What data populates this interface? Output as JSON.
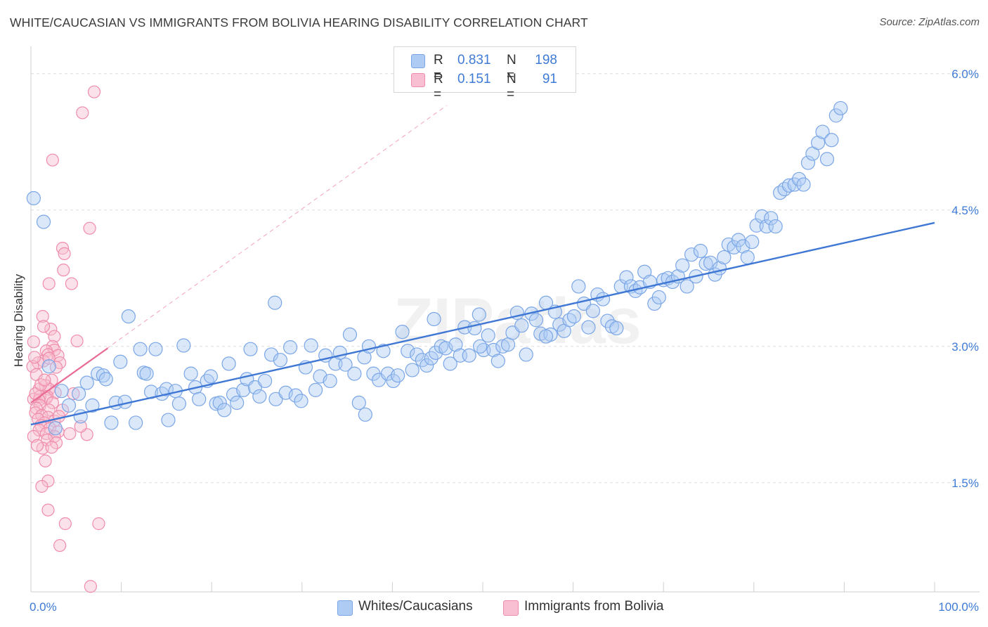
{
  "title": "WHITE/CAUCASIAN VS IMMIGRANTS FROM BOLIVIA HEARING DISABILITY CORRELATION CHART",
  "source": "Source: ZipAtlas.com",
  "watermark": "ZIPatlas",
  "colors": {
    "blue": "#3f77d4",
    "blue_fill": "#aecbf4",
    "blue_stroke": "#7ba6e6",
    "pink": "#e86b96",
    "pink_fill": "#f7bfd1",
    "pink_stroke": "#f08cab",
    "axis_label": "#3e7bd6"
  },
  "legend_top": [
    {
      "r_label": "R =",
      "r_value": "0.831",
      "n_label": "N =",
      "n_value": "198"
    },
    {
      "r_label": "R =",
      "r_value": "0.151",
      "n_label": "N =",
      "n_value": "91"
    }
  ],
  "legend_bottom": [
    "Whites/Caucasians",
    "Immigrants from Bolivia"
  ],
  "chart_data": {
    "type": "scatter",
    "ylabel": "Hearing Disability",
    "xlabel": "",
    "xlim": [
      0,
      100
    ],
    "ylim": [
      0.3,
      6.3
    ],
    "x_tick_labels": [
      "0.0%",
      "100.0%"
    ],
    "y_ticks": [
      1.5,
      3.0,
      4.5,
      6.0
    ],
    "y_tick_labels": [
      "1.5%",
      "3.0%",
      "4.5%",
      "6.0%"
    ],
    "grid": "horizontal dashed",
    "series": [
      {
        "name": "Whites/Caucasians",
        "color": "blue",
        "trend": {
          "x": [
            0,
            100
          ],
          "y": [
            2.14,
            4.36
          ]
        },
        "points": [
          [
            0.3,
            4.63
          ],
          [
            1.4,
            4.37
          ],
          [
            2.0,
            2.78
          ],
          [
            2.7,
            2.1
          ],
          [
            3.4,
            2.51
          ],
          [
            4.2,
            2.35
          ],
          [
            5.3,
            2.48
          ],
          [
            5.5,
            2.23
          ],
          [
            6.2,
            2.6
          ],
          [
            6.8,
            2.35
          ],
          [
            7.4,
            2.7
          ],
          [
            8.0,
            2.68
          ],
          [
            8.3,
            2.64
          ],
          [
            8.9,
            2.16
          ],
          [
            9.4,
            2.38
          ],
          [
            9.9,
            2.83
          ],
          [
            10.4,
            2.39
          ],
          [
            10.8,
            3.33
          ],
          [
            11.6,
            2.16
          ],
          [
            12.1,
            2.97
          ],
          [
            12.5,
            2.71
          ],
          [
            12.8,
            2.7
          ],
          [
            13.3,
            2.5
          ],
          [
            13.8,
            2.97
          ],
          [
            14.5,
            2.48
          ],
          [
            15.0,
            2.53
          ],
          [
            15.2,
            2.19
          ],
          [
            16.0,
            2.51
          ],
          [
            16.4,
            2.37
          ],
          [
            16.9,
            3.01
          ],
          [
            17.7,
            2.7
          ],
          [
            18.2,
            2.55
          ],
          [
            18.6,
            2.42
          ],
          [
            19.5,
            2.62
          ],
          [
            19.9,
            2.67
          ],
          [
            20.5,
            2.37
          ],
          [
            20.9,
            2.38
          ],
          [
            21.4,
            2.3
          ],
          [
            21.9,
            2.81
          ],
          [
            22.4,
            2.47
          ],
          [
            22.8,
            2.38
          ],
          [
            23.5,
            2.52
          ],
          [
            23.9,
            2.64
          ],
          [
            24.3,
            2.97
          ],
          [
            24.8,
            2.55
          ],
          [
            25.3,
            2.45
          ],
          [
            25.9,
            2.62
          ],
          [
            26.6,
            2.91
          ],
          [
            27.1,
            2.42
          ],
          [
            27.6,
            2.85
          ],
          [
            28.2,
            2.49
          ],
          [
            28.7,
            2.99
          ],
          [
            29.3,
            2.46
          ],
          [
            29.9,
            2.4
          ],
          [
            30.4,
            2.77
          ],
          [
            31.0,
            3.01
          ],
          [
            31.5,
            2.52
          ],
          [
            32.0,
            2.67
          ],
          [
            32.6,
            2.9
          ],
          [
            33.1,
            2.62
          ],
          [
            33.7,
            2.81
          ],
          [
            34.2,
            2.93
          ],
          [
            34.8,
            2.8
          ],
          [
            35.3,
            3.13
          ],
          [
            35.8,
            2.7
          ],
          [
            36.3,
            2.38
          ],
          [
            36.9,
            2.88
          ],
          [
            37.4,
            3.0
          ],
          [
            37.9,
            2.7
          ],
          [
            38.5,
            2.63
          ],
          [
            39.0,
            2.95
          ],
          [
            39.5,
            2.7
          ],
          [
            40.1,
            2.62
          ],
          [
            40.6,
            2.68
          ],
          [
            41.1,
            3.16
          ],
          [
            41.7,
            2.95
          ],
          [
            42.2,
            2.74
          ],
          [
            42.7,
            2.91
          ],
          [
            43.3,
            2.85
          ],
          [
            43.8,
            2.79
          ],
          [
            44.3,
            2.87
          ],
          [
            44.8,
            2.93
          ],
          [
            45.4,
            3.0
          ],
          [
            45.9,
            2.98
          ],
          [
            46.4,
            2.81
          ],
          [
            47.0,
            3.02
          ],
          [
            47.5,
            2.9
          ],
          [
            48.0,
            3.21
          ],
          [
            48.5,
            2.9
          ],
          [
            49.1,
            3.2
          ],
          [
            49.6,
            3.35
          ],
          [
            50.1,
            2.96
          ],
          [
            50.6,
            3.12
          ],
          [
            51.2,
            2.96
          ],
          [
            51.7,
            2.84
          ],
          [
            52.2,
            3.0
          ],
          [
            52.8,
            3.02
          ],
          [
            53.3,
            3.15
          ],
          [
            53.8,
            3.37
          ],
          [
            54.3,
            3.23
          ],
          [
            54.8,
            2.91
          ],
          [
            55.4,
            3.36
          ],
          [
            55.9,
            3.29
          ],
          [
            56.4,
            3.14
          ],
          [
            57.0,
            3.48
          ],
          [
            57.5,
            3.13
          ],
          [
            58.0,
            3.38
          ],
          [
            58.5,
            3.24
          ],
          [
            59.0,
            3.17
          ],
          [
            59.6,
            3.29
          ],
          [
            60.1,
            3.33
          ],
          [
            60.6,
            3.66
          ],
          [
            61.2,
            3.47
          ],
          [
            61.7,
            3.21
          ],
          [
            62.2,
            3.39
          ],
          [
            62.7,
            3.57
          ],
          [
            63.3,
            3.52
          ],
          [
            63.8,
            3.28
          ],
          [
            64.3,
            3.22
          ],
          [
            64.8,
            3.2
          ],
          [
            65.3,
            3.66
          ],
          [
            65.9,
            3.76
          ],
          [
            66.4,
            3.66
          ],
          [
            66.9,
            3.61
          ],
          [
            67.4,
            3.65
          ],
          [
            67.9,
            3.82
          ],
          [
            68.5,
            3.71
          ],
          [
            69.0,
            3.47
          ],
          [
            69.5,
            3.54
          ],
          [
            70.0,
            3.73
          ],
          [
            70.5,
            3.75
          ],
          [
            71.0,
            3.71
          ],
          [
            71.6,
            3.77
          ],
          [
            72.1,
            3.89
          ],
          [
            72.6,
            3.66
          ],
          [
            73.1,
            4.01
          ],
          [
            73.6,
            3.77
          ],
          [
            74.1,
            4.05
          ],
          [
            74.7,
            3.91
          ],
          [
            75.2,
            3.92
          ],
          [
            75.7,
            3.79
          ],
          [
            76.2,
            3.86
          ],
          [
            76.7,
            3.98
          ],
          [
            77.2,
            4.12
          ],
          [
            77.8,
            4.09
          ],
          [
            78.3,
            4.17
          ],
          [
            78.8,
            4.1
          ],
          [
            79.3,
            3.98
          ],
          [
            79.8,
            4.15
          ],
          [
            80.3,
            4.33
          ],
          [
            80.9,
            4.43
          ],
          [
            81.4,
            4.32
          ],
          [
            81.9,
            4.41
          ],
          [
            82.4,
            4.32
          ],
          [
            82.9,
            4.69
          ],
          [
            83.4,
            4.73
          ],
          [
            83.9,
            4.77
          ],
          [
            84.5,
            4.78
          ],
          [
            85.0,
            4.84
          ],
          [
            85.5,
            4.78
          ],
          [
            86.0,
            5.02
          ],
          [
            86.5,
            5.12
          ],
          [
            87.1,
            5.24
          ],
          [
            87.6,
            5.36
          ],
          [
            88.1,
            5.06
          ],
          [
            88.6,
            5.27
          ],
          [
            89.1,
            5.54
          ],
          [
            89.6,
            5.62
          ],
          [
            49.7,
            3.0
          ],
          [
            57.0,
            3.11
          ],
          [
            44.6,
            3.3
          ],
          [
            27.0,
            3.48
          ],
          [
            37.0,
            2.25
          ]
        ]
      },
      {
        "name": "Immigrants from Bolivia",
        "color": "pink",
        "trend": {
          "x": [
            0,
            8.5
          ],
          "y": [
            2.38,
            2.98
          ]
        },
        "trend_extended": {
          "x": [
            0,
            46
          ],
          "y": [
            2.38,
            5.65
          ]
        },
        "points": [
          [
            7.0,
            5.8
          ],
          [
            5.7,
            5.57
          ],
          [
            2.4,
            5.05
          ],
          [
            6.5,
            4.3
          ],
          [
            3.5,
            4.08
          ],
          [
            3.6,
            3.84
          ],
          [
            3.7,
            4.02
          ],
          [
            2.0,
            3.69
          ],
          [
            4.5,
            3.69
          ],
          [
            1.3,
            3.33
          ],
          [
            2.2,
            3.19
          ],
          [
            1.4,
            3.22
          ],
          [
            2.6,
            3.11
          ],
          [
            5.1,
            3.06
          ],
          [
            2.4,
            3.0
          ],
          [
            2.6,
            2.96
          ],
          [
            1.7,
            2.95
          ],
          [
            1.9,
            2.91
          ],
          [
            0.3,
            3.05
          ],
          [
            3.0,
            2.9
          ],
          [
            1.4,
            2.84
          ],
          [
            2.0,
            2.87
          ],
          [
            0.8,
            2.82
          ],
          [
            3.2,
            2.82
          ],
          [
            0.2,
            2.78
          ],
          [
            0.6,
            2.69
          ],
          [
            2.3,
            2.63
          ],
          [
            1.6,
            2.57
          ],
          [
            0.9,
            2.53
          ],
          [
            2.0,
            2.53
          ],
          [
            2.7,
            2.49
          ],
          [
            1.8,
            2.45
          ],
          [
            0.3,
            2.42
          ],
          [
            1.0,
            2.45
          ],
          [
            1.7,
            2.43
          ],
          [
            0.9,
            2.41
          ],
          [
            2.4,
            2.38
          ],
          [
            1.0,
            2.35
          ],
          [
            0.6,
            2.32
          ],
          [
            2.0,
            2.3
          ],
          [
            3.5,
            2.3
          ],
          [
            0.5,
            2.27
          ],
          [
            1.2,
            2.24
          ],
          [
            1.9,
            2.22
          ],
          [
            0.8,
            2.2
          ],
          [
            2.6,
            2.18
          ],
          [
            1.5,
            2.16
          ],
          [
            1.1,
            2.13
          ],
          [
            2.1,
            2.1
          ],
          [
            0.9,
            2.08
          ],
          [
            3.0,
            2.06
          ],
          [
            1.7,
            2.04
          ],
          [
            2.6,
            2.01
          ],
          [
            4.3,
            2.04
          ],
          [
            6.2,
            2.03
          ],
          [
            0.3,
            2.01
          ],
          [
            1.8,
            1.97
          ],
          [
            2.8,
            1.94
          ],
          [
            1.3,
            1.88
          ],
          [
            2.3,
            1.89
          ],
          [
            0.7,
            1.91
          ],
          [
            1.6,
            1.74
          ],
          [
            1.9,
            1.52
          ],
          [
            1.2,
            1.46
          ],
          [
            1.9,
            1.2
          ],
          [
            3.8,
            1.05
          ],
          [
            7.5,
            1.05
          ],
          [
            3.2,
            0.81
          ],
          [
            6.6,
            0.36
          ],
          [
            2.8,
            2.77
          ],
          [
            0.5,
            2.48
          ],
          [
            1.1,
            2.58
          ],
          [
            4.7,
            2.48
          ],
          [
            3.1,
            2.23
          ],
          [
            5.5,
            2.12
          ],
          [
            0.4,
            2.88
          ],
          [
            1.5,
            2.63
          ]
        ]
      }
    ]
  }
}
